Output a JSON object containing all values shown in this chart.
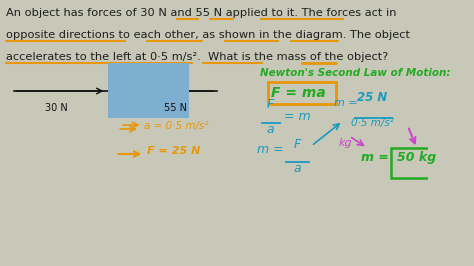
{
  "bg_color": "#3a3a3a",
  "text_color": "#2a2a2a",
  "title_color": "#1a1a1a",
  "dark_color": "#111111",
  "orange_color": "#e8960a",
  "green_color": "#22aa22",
  "cyan_color": "#1a9abf",
  "magenta_color": "#cc44cc",
  "box_color": "#7eafd0",
  "title_lines": [
    "An object has forces of 30 N and 55 N applied to it. The forces act in",
    "opposite directions to each other, as shown in the diagram. The object",
    "accelerates to the left at 0·5 m/s².  What is the mass of the object?"
  ]
}
